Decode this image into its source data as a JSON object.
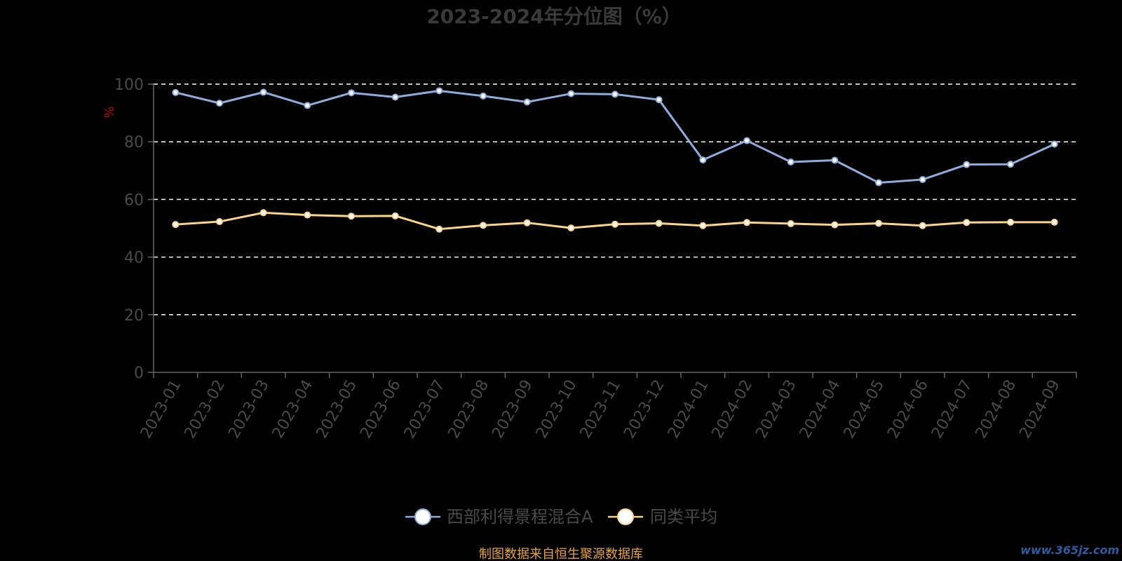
{
  "chart_data": {
    "type": "line",
    "title": "2023-2024年分位图（%）",
    "ylabel": "%",
    "ylim": [
      0,
      100
    ],
    "yticks": [
      0,
      20,
      40,
      60,
      80,
      100
    ],
    "grid": true,
    "categories": [
      "2023-01",
      "2023-02",
      "2023-03",
      "2023-04",
      "2023-05",
      "2023-06",
      "2023-07",
      "2023-08",
      "2023-09",
      "2023-10",
      "2023-11",
      "2023-12",
      "2024-01",
      "2024-02",
      "2024-03",
      "2024-04",
      "2024-05",
      "2024-06",
      "2024-07",
      "2024-08",
      "2024-09"
    ],
    "series": [
      {
        "name": "西部利得景程混合A",
        "color": "#8eacdc",
        "values": [
          97.1,
          93.4,
          97.2,
          92.6,
          97.0,
          95.5,
          97.7,
          95.9,
          93.8,
          96.7,
          96.5,
          94.6,
          73.7,
          80.4,
          73.0,
          73.6,
          65.8,
          66.9,
          72.1,
          72.2,
          79.2
        ]
      },
      {
        "name": "同类平均",
        "color": "#fbd38a",
        "values": [
          51.3,
          52.3,
          55.4,
          54.6,
          54.2,
          54.3,
          49.7,
          51.0,
          51.9,
          50.1,
          51.4,
          51.7,
          50.9,
          52.0,
          51.6,
          51.2,
          51.7,
          50.9,
          52.0,
          52.1,
          52.1
        ]
      }
    ],
    "legend_position": "bottom"
  },
  "source_text": "制图数据来自恒生聚源数据库",
  "watermark": "www.365jz.com"
}
